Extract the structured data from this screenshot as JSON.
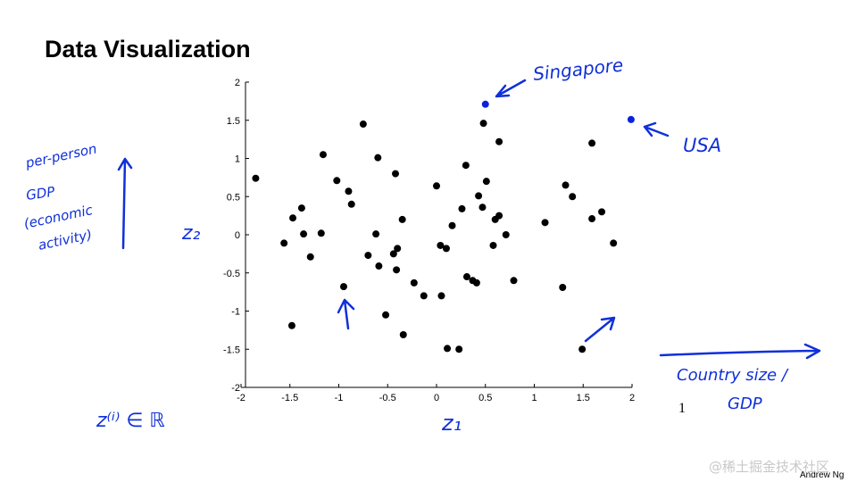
{
  "title": "Data Visualization",
  "chart_data": {
    "type": "scatter",
    "xlabel": "z₁",
    "ylabel": "z₂",
    "xlim": [
      -2,
      2
    ],
    "ylim": [
      -2,
      2
    ],
    "xticks": [
      -2,
      -1.5,
      -1,
      -0.5,
      0,
      0.5,
      1,
      1.5,
      2
    ],
    "yticks": [
      -2,
      -1.5,
      -1,
      -0.5,
      0,
      0.5,
      1,
      1.5,
      2
    ],
    "series": [
      {
        "color": "#000000",
        "x": [
          -1.85,
          -1.56,
          -1.47,
          -1.38,
          -1.36,
          -1.29,
          -1.48,
          -1.18,
          -1.16,
          -1.02,
          -0.9,
          -0.87,
          -0.95,
          -0.75,
          -0.7,
          -0.6,
          -0.62,
          -0.59,
          -0.52,
          -0.42,
          -0.44,
          -0.4,
          -0.41,
          -0.35,
          -0.34,
          -0.23,
          -0.13,
          0,
          0.04,
          0.1,
          0.05,
          0.11,
          0.16,
          0.23,
          0.26,
          0.3,
          0.31,
          0.37,
          0.41,
          0.43,
          0.47,
          0.48,
          0.51,
          0.58,
          0.6,
          0.64,
          0.64,
          0.71,
          0.79,
          1.11,
          1.29,
          1.32,
          1.39,
          1.49,
          1.59,
          1.59,
          1.69,
          1.81
        ],
        "values": [
          0.74,
          -0.11,
          0.22,
          0.35,
          0.01,
          -0.29,
          -1.19,
          0.02,
          1.05,
          0.71,
          0.57,
          0.4,
          -0.68,
          1.45,
          -0.27,
          1.01,
          0.01,
          -0.41,
          -1.05,
          0.8,
          -0.25,
          -0.18,
          -0.46,
          0.2,
          -1.31,
          -0.63,
          -0.8,
          0.64,
          -0.14,
          -0.18,
          -0.8,
          -1.49,
          0.12,
          -1.5,
          0.34,
          0.91,
          -0.55,
          -0.6,
          -0.63,
          0.51,
          0.36,
          1.46,
          0.7,
          -0.14,
          0.2,
          0.25,
          1.22,
          0,
          -0.6,
          0.16,
          -0.69,
          0.65,
          0.5,
          -1.5,
          1.2,
          0.21,
          0.3,
          -0.11
        ]
      },
      {
        "color": "#0a22e0",
        "x": [
          0.5,
          1.99
        ],
        "values": [
          1.71,
          1.51
        ]
      }
    ],
    "annotations": {
      "singapore": "Singapore",
      "usa": "USA",
      "gdp": [
        "per-person",
        "GDP",
        "(economic",
        "activity)"
      ],
      "size": [
        "Country size /",
        "GDP"
      ],
      "zi": "z⁽ⁱ⁾ ∈ ℝ"
    }
  },
  "page_number": "1",
  "author": "Andrew Ng",
  "watermark": "@稀土掘金技术社区"
}
